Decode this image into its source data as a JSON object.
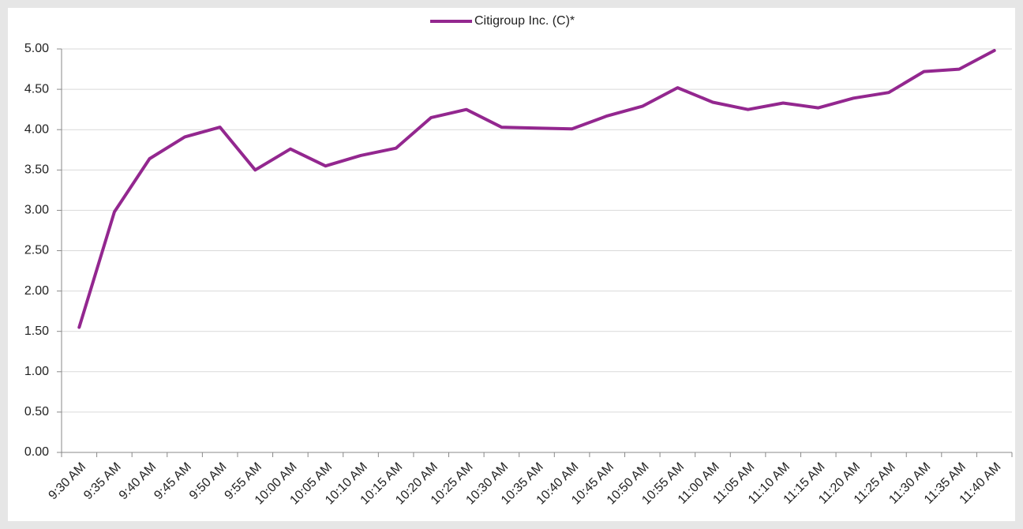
{
  "chart_data": {
    "type": "line",
    "categories": [
      "9:30 AM",
      "9:35 AM",
      "9:40 AM",
      "9:45 AM",
      "9:50 AM",
      "9:55 AM",
      "10:00 AM",
      "10:05 AM",
      "10:10 AM",
      "10:15 AM",
      "10:20 AM",
      "10:25 AM",
      "10:30 AM",
      "10:35 AM",
      "10:40 AM",
      "10:45 AM",
      "10:50 AM",
      "10:55 AM",
      "11:00 AM",
      "11:05 AM",
      "11:10 AM",
      "11:15 AM",
      "11:20 AM",
      "11:25 AM",
      "11:30 AM",
      "11:35 AM",
      "11:40 AM"
    ],
    "series": [
      {
        "name": "Citigroup Inc. (C)*",
        "color": "#93278f",
        "values": [
          1.55,
          2.98,
          3.64,
          3.91,
          4.03,
          3.5,
          3.76,
          3.55,
          3.68,
          3.77,
          4.15,
          4.25,
          4.03,
          4.02,
          4.01,
          4.17,
          4.29,
          4.52,
          4.34,
          4.25,
          4.33,
          4.27,
          4.39,
          4.46,
          4.72,
          4.75,
          4.98
        ]
      }
    ],
    "ylim": [
      0,
      5
    ],
    "yticks": [
      {
        "value": 0,
        "label": "0.00"
      },
      {
        "value": 0.5,
        "label": "0.50"
      },
      {
        "value": 1,
        "label": "1.00"
      },
      {
        "value": 1.5,
        "label": "1.50"
      },
      {
        "value": 2,
        "label": "2.00"
      },
      {
        "value": 2.5,
        "label": "2.50"
      },
      {
        "value": 3,
        "label": "3.00"
      },
      {
        "value": 3.5,
        "label": "3.50"
      },
      {
        "value": 4,
        "label": "4.00"
      },
      {
        "value": 4.5,
        "label": "4.50"
      },
      {
        "value": 5,
        "label": "5.00"
      }
    ],
    "grid": true,
    "legend": "top"
  }
}
